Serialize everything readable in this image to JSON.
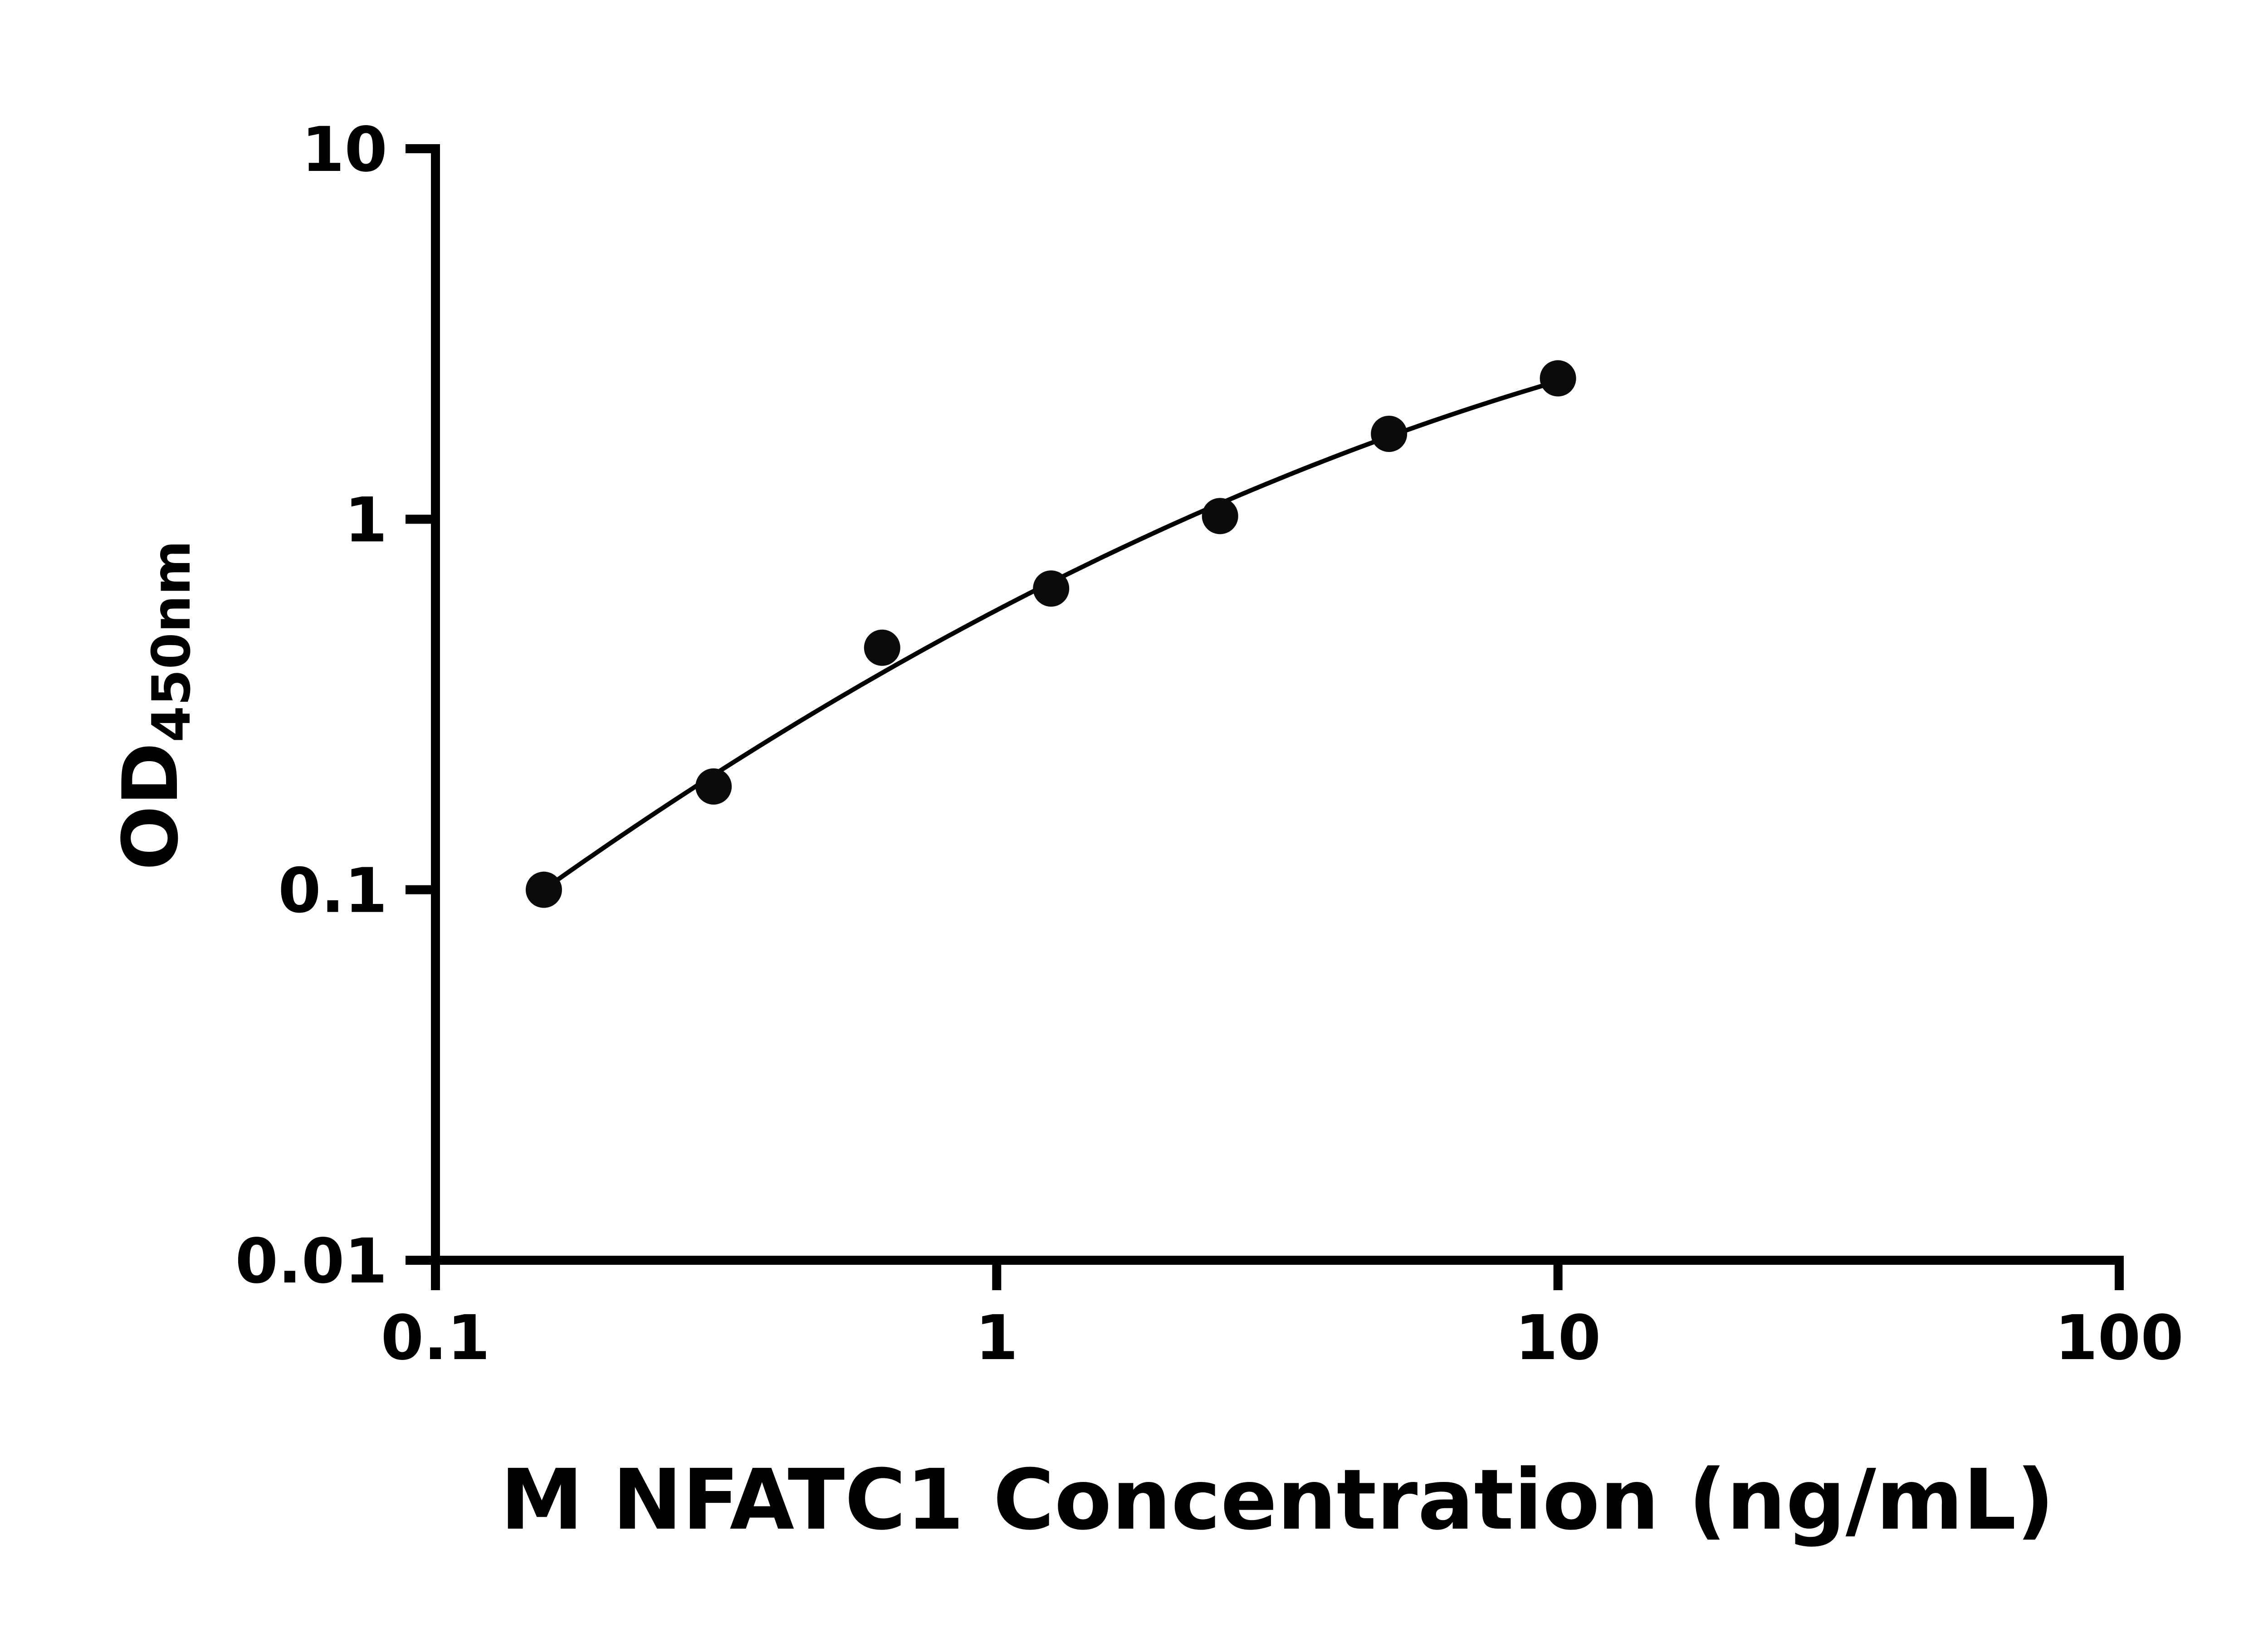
{
  "figure": {
    "background_color": "#ffffff"
  },
  "chart_data": {
    "type": "scatter",
    "title": "",
    "xlabel": "M NFATC1 Concentration (ng/mL)",
    "ylabel": "OD450nm",
    "ylabel_main": "OD",
    "ylabel_subscript": "450nm",
    "x_scale": "log10",
    "y_scale": "log10",
    "xlim": [
      0.1,
      100
    ],
    "ylim": [
      0.01,
      10
    ],
    "x_ticks": [
      0.1,
      1,
      10,
      100
    ],
    "x_tick_labels": [
      "0.1",
      "1",
      "10",
      "100"
    ],
    "y_ticks": [
      0.01,
      0.1,
      1,
      10
    ],
    "y_tick_labels": [
      "0.01",
      "0.1",
      "1",
      "10"
    ],
    "grid": false,
    "legend": "none",
    "axis_color": "#000000",
    "text_color": "#000000",
    "series": [
      {
        "x": [
          0.156,
          0.313,
          0.625,
          1.25,
          2.5,
          5,
          10
        ],
        "y": [
          0.1,
          0.19,
          0.45,
          0.65,
          1.02,
          1.7,
          2.4
        ],
        "marker": "filled-circle",
        "marker_color": "#0b0b0b",
        "marker_radius_px": 10,
        "line": "smooth-fit-curve",
        "line_color": "#000000",
        "fit": "quadratic-in-log-log"
      }
    ]
  }
}
